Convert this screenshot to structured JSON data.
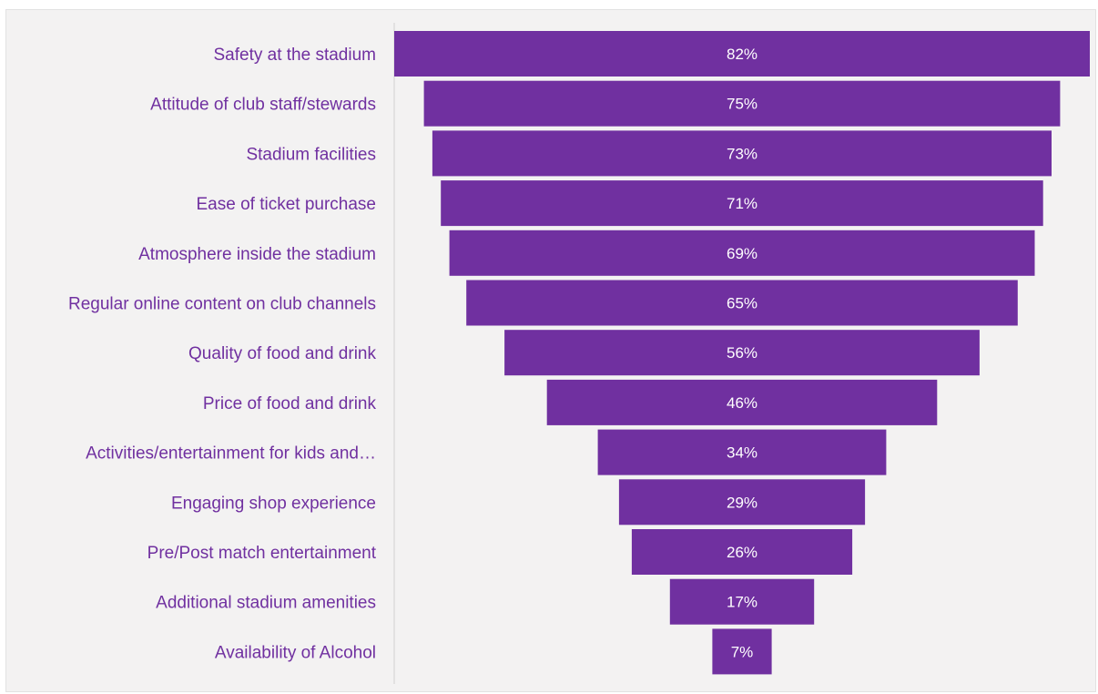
{
  "chart_data": {
    "type": "bar",
    "orientation": "horizontal-centered",
    "categories": [
      "Safety at the stadium",
      "Attitude of club staff/stewards",
      "Stadium facilities",
      "Ease of ticket purchase",
      "Atmosphere inside the stadium",
      "Regular online content on club channels",
      "Quality of food and drink",
      "Price of food and drink",
      "Activities/entertainment for kids and…",
      "Engaging shop experience",
      "Pre/Post match entertainment",
      "Additional stadium amenities",
      "Availability of Alcohol"
    ],
    "values": [
      82,
      75,
      73,
      71,
      69,
      65,
      56,
      46,
      34,
      29,
      26,
      17,
      7
    ],
    "value_labels": [
      "82%",
      "75%",
      "73%",
      "71%",
      "69%",
      "65%",
      "56%",
      "46%",
      "34%",
      "29%",
      "26%",
      "17%",
      "7%"
    ],
    "xlim": [
      0,
      82
    ],
    "grid": false,
    "legend": "none"
  },
  "colors": {
    "bar": "#7030a0",
    "label_text": "#7030a0",
    "value_text": "#ffffff",
    "background": "#f3f2f2"
  }
}
